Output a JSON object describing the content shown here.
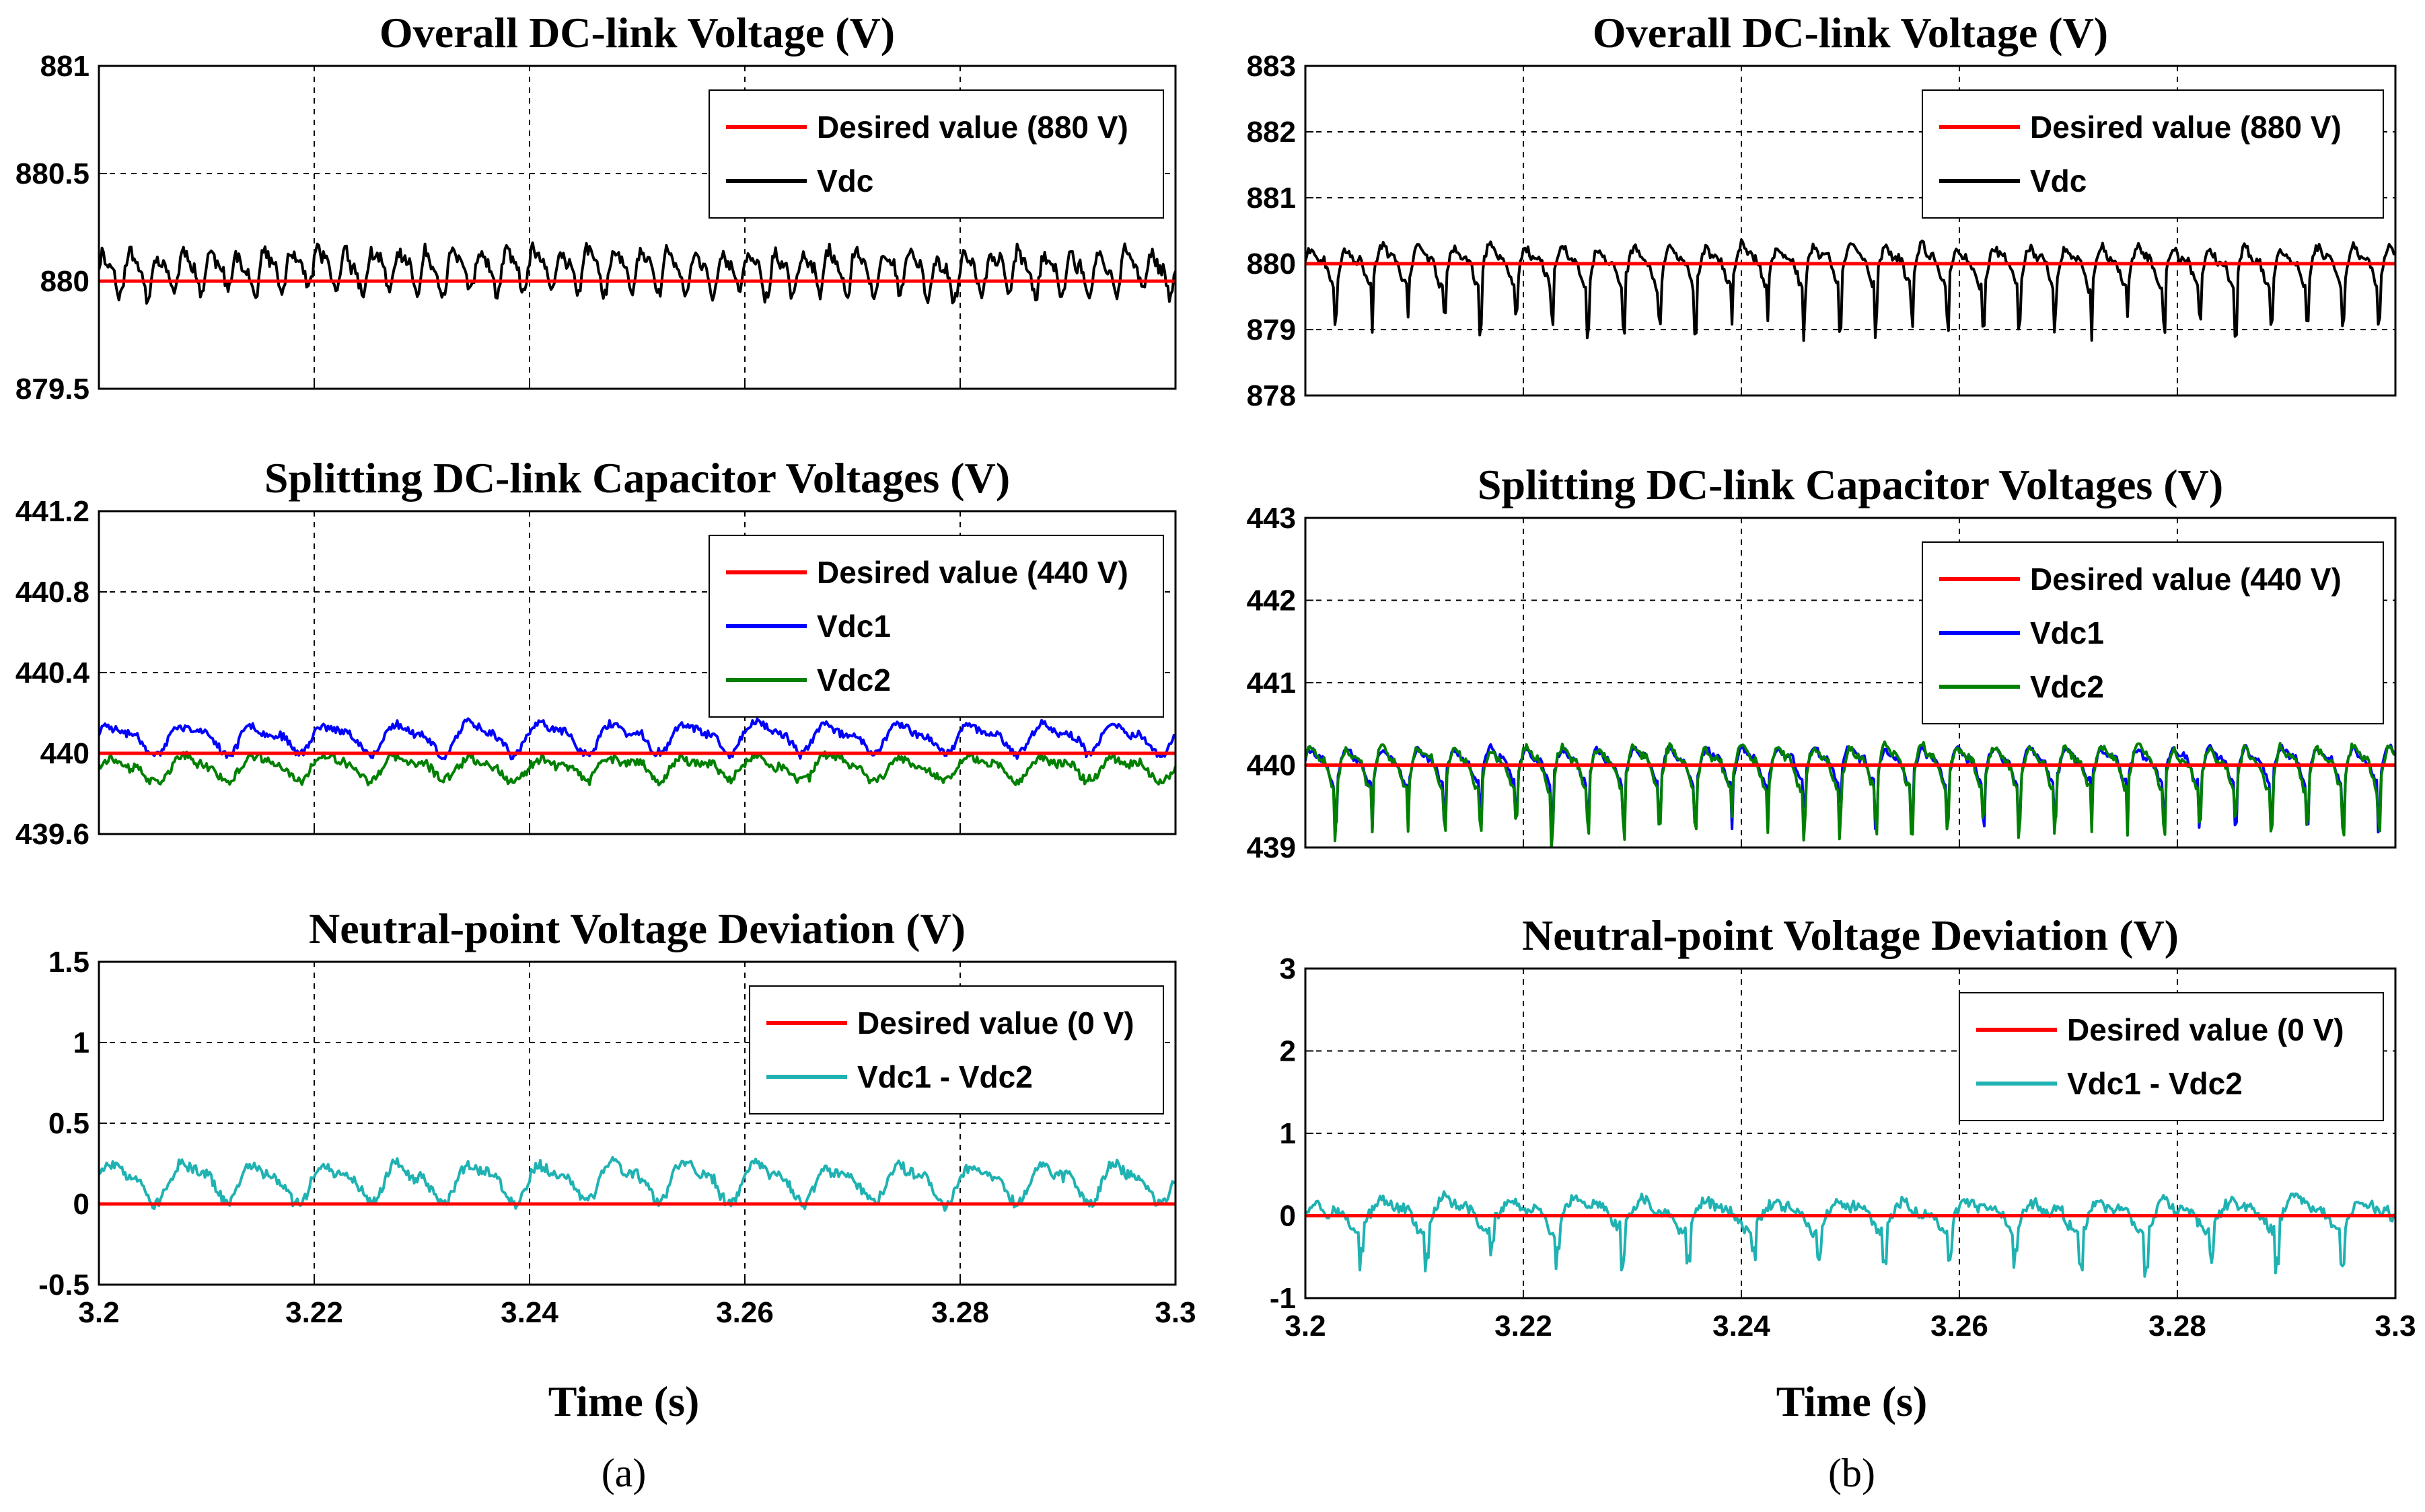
{
  "figure": {
    "xlabel": "Time (s)",
    "panel_labels": [
      "(a)",
      "(b)"
    ]
  },
  "colors": {
    "desired": "#ff0000",
    "vdc": "#000000",
    "vdc1": "#0000ff",
    "vdc2": "#008000",
    "deviation": "#20b2b2",
    "grid": "#000000"
  },
  "chart_data": [
    {
      "id": "a1",
      "panel": "a",
      "type": "line",
      "title": "Overall DC-link Voltage (V)",
      "xlabel": "",
      "ylabel": "",
      "xlim": [
        3.2,
        3.3
      ],
      "ylim": [
        879.5,
        881
      ],
      "xticks": [
        3.2,
        3.22,
        3.24,
        3.26,
        3.28,
        3.3
      ],
      "xtick_labels": [],
      "yticks": [
        879.5,
        880,
        880.5,
        881
      ],
      "ytick_labels": [
        "879.5",
        "880",
        "880.5",
        "881"
      ],
      "grid": true,
      "legend_position": "top-right",
      "series": [
        {
          "name": "Desired value (880 V)",
          "color": "#ff0000",
          "y": [
            880,
            880
          ]
        },
        {
          "name": "Vdc",
          "color": "#000000",
          "signal": {
            "base": 880.05,
            "period": 0.0025,
            "amp": 0.12,
            "jitter": 0.06,
            "seed": 11
          }
        }
      ]
    },
    {
      "id": "a2",
      "panel": "a",
      "type": "line",
      "title": "Splitting DC-link Capacitor Voltages (V)",
      "xlabel": "",
      "ylabel": "",
      "xlim": [
        3.2,
        3.3
      ],
      "ylim": [
        439.6,
        441.2
      ],
      "xticks": [
        3.2,
        3.22,
        3.24,
        3.26,
        3.28,
        3.3
      ],
      "xtick_labels": [],
      "yticks": [
        439.6,
        440,
        440.4,
        440.8,
        441.2
      ],
      "ytick_labels": [
        "439.6",
        "440",
        "440.4",
        "440.8",
        "441.2"
      ],
      "grid": true,
      "legend_position": "top-right",
      "series": [
        {
          "name": "Desired value (440 V)",
          "color": "#ff0000",
          "y": [
            440,
            440
          ]
        },
        {
          "name": "Vdc1",
          "color": "#0000ff",
          "signal": {
            "base": 440.08,
            "period": 0.006667,
            "amp": 0.09,
            "jitter": 0.035,
            "seed": 23
          }
        },
        {
          "name": "Vdc2",
          "color": "#008000",
          "signal": {
            "base": 439.93,
            "period": 0.006667,
            "amp": 0.07,
            "jitter": 0.04,
            "seed": 37
          }
        }
      ]
    },
    {
      "id": "a3",
      "panel": "a",
      "type": "line",
      "title": "Neutral-point Voltage Deviation (V)",
      "xlabel": "",
      "ylabel": "",
      "xlim": [
        3.2,
        3.3
      ],
      "ylim": [
        -0.5,
        1.5
      ],
      "xticks": [
        3.2,
        3.22,
        3.24,
        3.26,
        3.28,
        3.3
      ],
      "xtick_labels": [
        "3.2",
        "3.22",
        "3.24",
        "3.26",
        "3.28",
        "3.3"
      ],
      "yticks": [
        -0.5,
        0,
        0.5,
        1,
        1.5
      ],
      "ytick_labels": [
        "-0.5",
        "0",
        "0.5",
        "1",
        "1.5"
      ],
      "grid": true,
      "legend_position": "top-right",
      "series": [
        {
          "name": "Desired value (0 V)",
          "color": "#ff0000",
          "y": [
            0,
            0
          ]
        },
        {
          "name": "Vdc1 - Vdc2",
          "color": "#20b2b2",
          "signal": {
            "base": 0.14,
            "period": 0.006667,
            "amp": 0.14,
            "jitter": 0.06,
            "seed": 51
          }
        }
      ]
    },
    {
      "id": "b1",
      "panel": "b",
      "type": "line",
      "title": "Overall DC-link Voltage (V)",
      "xlabel": "",
      "ylabel": "",
      "xlim": [
        3.2,
        3.3
      ],
      "ylim": [
        878,
        883
      ],
      "xticks": [
        3.2,
        3.22,
        3.24,
        3.26,
        3.28,
        3.3
      ],
      "xtick_labels": [],
      "yticks": [
        878,
        879,
        880,
        881,
        882,
        883
      ],
      "ytick_labels": [
        "878",
        "879",
        "880",
        "881",
        "882",
        "883"
      ],
      "grid": true,
      "legend_position": "top-right",
      "series": [
        {
          "name": "Desired value (880 V)",
          "color": "#ff0000",
          "y": [
            880,
            880
          ]
        },
        {
          "name": "Vdc",
          "color": "#000000",
          "signal": {
            "base": 880.0,
            "period": 0.0033,
            "amp": 0.35,
            "jitter": 0.12,
            "seed": 67,
            "spiky": true
          }
        }
      ]
    },
    {
      "id": "b2",
      "panel": "b",
      "type": "line",
      "title": "Splitting DC-link Capacitor Voltages (V)",
      "xlabel": "",
      "ylabel": "",
      "xlim": [
        3.2,
        3.3
      ],
      "ylim": [
        439,
        443
      ],
      "xticks": [
        3.2,
        3.22,
        3.24,
        3.26,
        3.28,
        3.3
      ],
      "xtick_labels": [],
      "yticks": [
        439,
        440,
        441,
        442,
        443
      ],
      "ytick_labels": [
        "439",
        "440",
        "441",
        "442",
        "443"
      ],
      "grid": true,
      "legend_position": "top-right",
      "series": [
        {
          "name": "Desired value (440 V)",
          "color": "#ff0000",
          "y": [
            440,
            440
          ]
        },
        {
          "name": "Vdc1",
          "color": "#0000ff",
          "signal": {
            "base": 440.02,
            "period": 0.0033,
            "amp": 0.25,
            "jitter": 0.08,
            "seed": 79,
            "spiky": true
          }
        },
        {
          "name": "Vdc2",
          "color": "#008000",
          "signal": {
            "base": 440.0,
            "period": 0.0033,
            "amp": 0.3,
            "jitter": 0.09,
            "seed": 83,
            "spiky": true
          }
        }
      ]
    },
    {
      "id": "b3",
      "panel": "b",
      "type": "line",
      "title": "Neutral-point Voltage Deviation (V)",
      "xlabel": "",
      "ylabel": "",
      "xlim": [
        3.2,
        3.3
      ],
      "ylim": [
        -1,
        3
      ],
      "xticks": [
        3.2,
        3.22,
        3.24,
        3.26,
        3.28,
        3.3
      ],
      "xtick_labels": [
        "3.2",
        "3.22",
        "3.24",
        "3.26",
        "3.28",
        "3.3"
      ],
      "yticks": [
        -1,
        0,
        1,
        2,
        3
      ],
      "ytick_labels": [
        "-1",
        "0",
        "1",
        "2",
        "3"
      ],
      "grid": true,
      "legend_position": "top-right",
      "series": [
        {
          "name": "Desired value (0 V)",
          "color": "#ff0000",
          "y": [
            0,
            0
          ]
        },
        {
          "name": "Vdc1 - Vdc2",
          "color": "#20b2b2",
          "signal": {
            "base": 0.02,
            "period": 0.006,
            "amp": 0.22,
            "jitter": 0.12,
            "seed": 97,
            "spiky": true
          }
        }
      ]
    }
  ]
}
